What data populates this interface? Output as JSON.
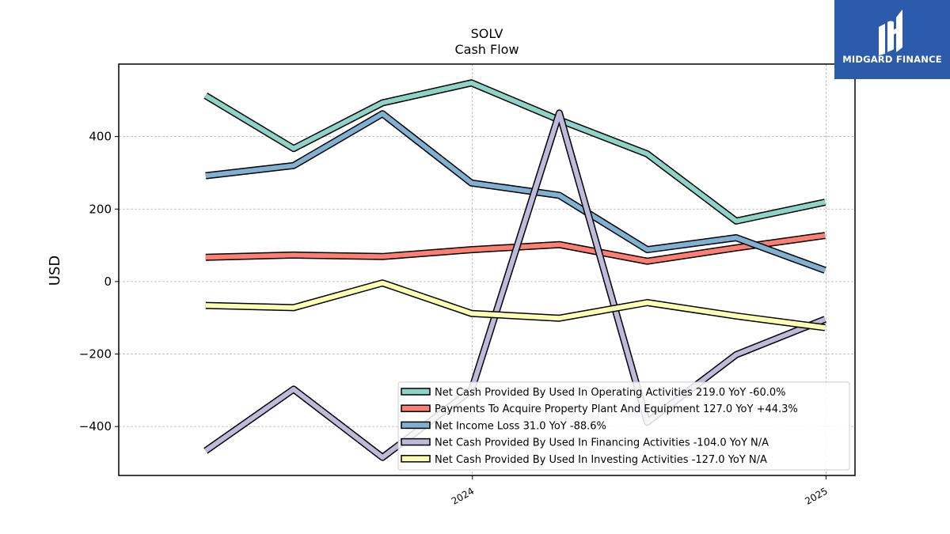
{
  "logo": {
    "text": "MIDGARD FINANCE",
    "bg_color": "#2d5bab"
  },
  "chart_data": {
    "type": "line",
    "title": "SOLV",
    "subtitle": "Cash Flow",
    "xlabel": "",
    "ylabel": "USD",
    "x": [
      "2023-03-31",
      "2023-06-30",
      "2023-09-30",
      "2023-12-31",
      "2024-03-31",
      "2024-06-30",
      "2024-09-30",
      "2024-12-31"
    ],
    "x_ticks": [
      {
        "label": "2024",
        "date": "2024-01-01"
      },
      {
        "label": "2025",
        "date": "2025-01-01"
      }
    ],
    "xlim": [
      "2022-12-31",
      "2025-01-31"
    ],
    "ylim": [
      -535,
      600
    ],
    "y_ticks": [
      -400,
      -200,
      0,
      200,
      400
    ],
    "y_tick_labels": [
      "−400",
      "−200",
      "0",
      "200",
      "400"
    ],
    "grid": true,
    "legend_position": "bottom-right",
    "series": [
      {
        "name": "Net Cash Provided By Used In Operating Activities  219.0 YoY -60.0%",
        "color": "#8dd3c7",
        "values": [
          513,
          367,
          493,
          548,
          446,
          352,
          167,
          219
        ]
      },
      {
        "name": "Payments To Acquire Property Plant And Equipment  127.0 YoY +44.3%",
        "color": "#fb8072",
        "values": [
          67,
          73,
          69,
          88,
          102,
          56,
          93,
          127
        ]
      },
      {
        "name": "Net Income Loss  31.0 YoY -88.6%",
        "color": "#80b1d3",
        "values": [
          292,
          320,
          463,
          272,
          238,
          88,
          121,
          31
        ]
      },
      {
        "name": "Net Cash Provided By Used In Financing Activities  -104.0 YoY N/A",
        "color": "#bebada",
        "values": [
          -467,
          -297,
          -485,
          -300,
          465,
          -388,
          -202,
          -104
        ]
      },
      {
        "name": "Net Cash Provided By Used In Investing Activities  -127.0 YoY N/A",
        "color": "#ffffb3",
        "values": [
          -66,
          -72,
          -4,
          -88,
          -101,
          -58,
          -95,
          -127
        ]
      }
    ]
  }
}
